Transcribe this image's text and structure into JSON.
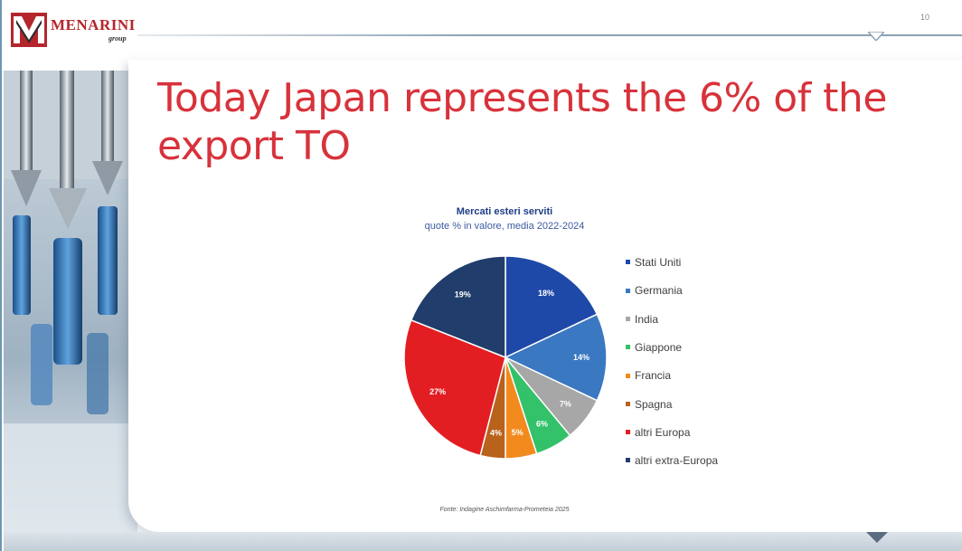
{
  "header": {
    "logo_text": "MENARINI",
    "logo_sub": "group",
    "page_number": "10"
  },
  "slide": {
    "title": "Today Japan represents the 6% of the export TO"
  },
  "colors": {
    "title": "#d8323b",
    "chart_title": "#1f3d87"
  },
  "chart_data": {
    "type": "pie",
    "title": "Mercati esteri serviti",
    "subtitle": "quote % in valore, media 2022-2024",
    "categories": [
      "Stati Uniti",
      "Germania",
      "India",
      "Giappone",
      "Francia",
      "Spagna",
      "altri Europa",
      "altri extra-Europa"
    ],
    "values": [
      18,
      14,
      7,
      6,
      5,
      4,
      27,
      19
    ],
    "labels": [
      "18%",
      "14%",
      "7%",
      "6%",
      "5%",
      "4%",
      "27%",
      "19%"
    ],
    "colors": [
      "#1f49a8",
      "#3a78c2",
      "#a7a7a7",
      "#33c16a",
      "#f28a1e",
      "#b9621c",
      "#e31e23",
      "#203d6b"
    ],
    "legend_position": "right",
    "source": "Fonte: Indagine Aschimfarma-Prometeia 2025"
  }
}
